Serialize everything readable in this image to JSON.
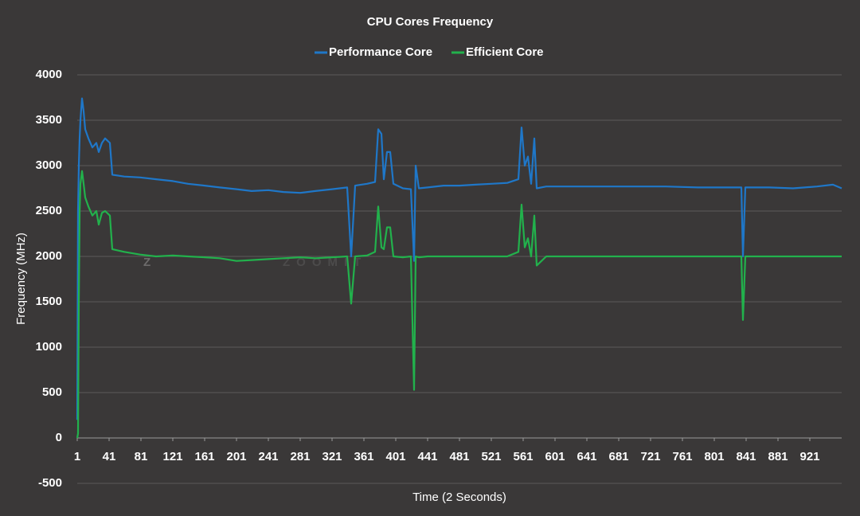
{
  "chart_data": {
    "type": "line",
    "title": "CPU Cores Frequency",
    "watermark": "ZOOMIT",
    "xlabel": "Time (2 Seconds)",
    "ylabel": "Frequency (MHz)",
    "x": [
      1,
      2,
      3,
      4,
      5,
      7,
      9,
      11,
      15,
      20,
      25,
      28,
      32,
      36,
      42,
      45,
      60,
      80,
      100,
      121,
      140,
      161,
      180,
      201,
      220,
      241,
      260,
      281,
      300,
      321,
      340,
      345,
      350,
      365,
      375,
      379,
      383,
      386,
      390,
      394,
      398,
      410,
      420,
      424,
      426,
      430,
      441,
      461,
      481,
      501,
      521,
      541,
      555,
      559,
      563,
      567,
      571,
      575,
      578,
      590,
      620,
      660,
      700,
      740,
      780,
      820,
      835,
      837,
      840,
      870,
      900,
      930,
      950,
      961
    ],
    "series": [
      {
        "name": "Performance Core",
        "color": "#1f77c8",
        "values": [
          200,
          2500,
          3000,
          3300,
          3500,
          3740,
          3600,
          3400,
          3300,
          3200,
          3250,
          3150,
          3250,
          3300,
          3250,
          2900,
          2880,
          2870,
          2850,
          2830,
          2800,
          2780,
          2760,
          2740,
          2720,
          2730,
          2710,
          2700,
          2720,
          2740,
          2760,
          2000,
          2780,
          2800,
          2820,
          3400,
          3350,
          2850,
          3150,
          3150,
          2800,
          2750,
          2740,
          1950,
          3000,
          2750,
          2760,
          2780,
          2780,
          2790,
          2800,
          2810,
          2850,
          3420,
          3000,
          3100,
          2800,
          3300,
          2750,
          2770,
          2770,
          2770,
          2770,
          2770,
          2760,
          2760,
          2760,
          2000,
          2760,
          2760,
          2750,
          2770,
          2790,
          2750
        ]
      },
      {
        "name": "Efficient Core",
        "color": "#22b14c",
        "values": [
          0,
          50,
          1500,
          2500,
          2800,
          2940,
          2800,
          2650,
          2550,
          2450,
          2500,
          2350,
          2480,
          2500,
          2450,
          2080,
          2050,
          2020,
          2000,
          2010,
          2000,
          1990,
          1980,
          1950,
          1960,
          1970,
          1980,
          1990,
          1980,
          1990,
          2000,
          1480,
          2000,
          2010,
          2050,
          2550,
          2100,
          2080,
          2320,
          2320,
          2000,
          1990,
          2000,
          530,
          2000,
          1990,
          2000,
          2000,
          2000,
          2000,
          2000,
          2000,
          2050,
          2570,
          2100,
          2200,
          2000,
          2450,
          1900,
          2000,
          2000,
          2000,
          2000,
          2000,
          2000,
          2000,
          2000,
          1300,
          2000,
          2000,
          2000,
          2000,
          2000,
          2000
        ]
      }
    ],
    "xlim": [
      1,
      961
    ],
    "xticks": [
      1,
      41,
      81,
      121,
      161,
      201,
      241,
      281,
      321,
      361,
      401,
      441,
      481,
      521,
      561,
      601,
      641,
      681,
      721,
      761,
      801,
      841,
      881,
      921
    ],
    "ylim": [
      -500,
      4000
    ],
    "yticks": [
      -500,
      0,
      500,
      1000,
      1500,
      2000,
      2500,
      3000,
      3500,
      4000
    ],
    "grid": true
  }
}
